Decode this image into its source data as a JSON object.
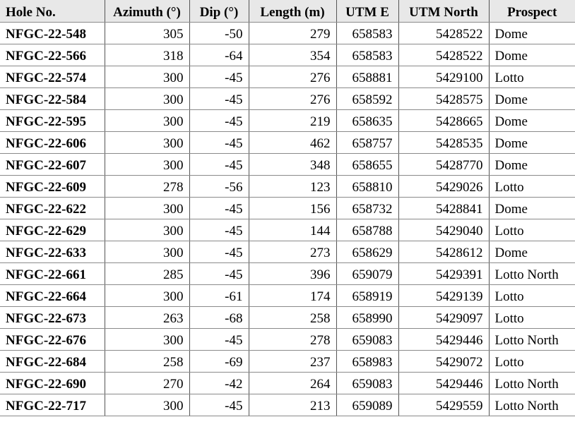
{
  "table": {
    "header": [
      "Hole No.",
      "Azimuth (°)",
      "Dip (°)",
      "Length (m)",
      "UTM E",
      "UTM North",
      "Prospect"
    ],
    "rows": [
      [
        "NFGC-22-548",
        305,
        -50,
        279,
        658583,
        5428522,
        "Dome"
      ],
      [
        "NFGC-22-566",
        318,
        -64,
        354,
        658583,
        5428522,
        "Dome"
      ],
      [
        "NFGC-22-574",
        300,
        -45,
        276,
        658881,
        5429100,
        "Lotto"
      ],
      [
        "NFGC-22-584",
        300,
        -45,
        276,
        658592,
        5428575,
        "Dome"
      ],
      [
        "NFGC-22-595",
        300,
        -45,
        219,
        658635,
        5428665,
        "Dome"
      ],
      [
        "NFGC-22-606",
        300,
        -45,
        462,
        658757,
        5428535,
        "Dome"
      ],
      [
        "NFGC-22-607",
        300,
        -45,
        348,
        658655,
        5428770,
        "Dome"
      ],
      [
        "NFGC-22-609",
        278,
        -56,
        123,
        658810,
        5429026,
        "Lotto"
      ],
      [
        "NFGC-22-622",
        300,
        -45,
        156,
        658732,
        5428841,
        "Dome"
      ],
      [
        "NFGC-22-629",
        300,
        -45,
        144,
        658788,
        5429040,
        "Lotto"
      ],
      [
        "NFGC-22-633",
        300,
        -45,
        273,
        658629,
        5428612,
        "Dome"
      ],
      [
        "NFGC-22-661",
        285,
        -45,
        396,
        659079,
        5429391,
        "Lotto North"
      ],
      [
        "NFGC-22-664",
        300,
        -61,
        174,
        658919,
        5429139,
        "Lotto"
      ],
      [
        "NFGC-22-673",
        263,
        -68,
        258,
        658990,
        5429097,
        "Lotto"
      ],
      [
        "NFGC-22-676",
        300,
        -45,
        278,
        659083,
        5429446,
        "Lotto North"
      ],
      [
        "NFGC-22-684",
        258,
        -69,
        237,
        658983,
        5429072,
        "Lotto"
      ],
      [
        "NFGC-22-690",
        270,
        -42,
        264,
        659083,
        5429446,
        "Lotto North"
      ],
      [
        "NFGC-22-717",
        300,
        -45,
        213,
        659089,
        5429559,
        "Lotto North"
      ]
    ]
  }
}
